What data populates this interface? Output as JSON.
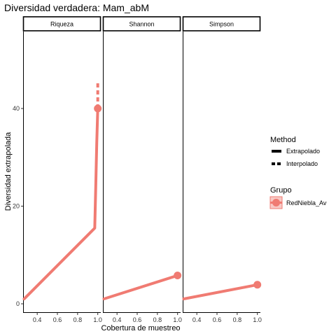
{
  "chart_data": {
    "type": "line",
    "title": "Diversidad verdadera: Mam_abM",
    "xlabel": "Cobertura de muestreo",
    "ylabel": "Diversidad extrapolada",
    "ylim": [
      0,
      56
    ],
    "xlim": [
      0.26,
      1.03
    ],
    "y_ticks": [
      "0",
      "20",
      "40"
    ],
    "y_tick_values": [
      0,
      20,
      40
    ],
    "x_ticks": [
      "0.4",
      "0.6",
      "0.8",
      "1.0"
    ],
    "x_tick_values": [
      0.4,
      0.6,
      0.8,
      1.0
    ],
    "series_color": "#F07B72",
    "panels": [
      {
        "label": "Riqueza",
        "interpolado": [
          [
            0.27,
            1.0
          ],
          [
            0.97,
            15.5
          ],
          [
            0.98,
            24.0
          ],
          [
            0.99,
            33.0
          ],
          [
            1.0,
            40.0
          ]
        ],
        "extrapolado": [
          [
            1.0,
            40.0
          ],
          [
            1.0,
            45.5
          ]
        ],
        "observed": [
          1.0,
          40.0
        ]
      },
      {
        "label": "Shannon",
        "interpolado": [
          [
            0.27,
            1.0
          ],
          [
            1.0,
            5.8
          ]
        ],
        "extrapolado": [],
        "observed": [
          1.0,
          5.8
        ]
      },
      {
        "label": "Simpson",
        "interpolado": [
          [
            0.27,
            1.0
          ],
          [
            1.0,
            3.9
          ]
        ],
        "extrapolado": [],
        "observed": [
          1.0,
          3.9
        ]
      }
    ],
    "legend": {
      "placement": "right",
      "method_title": "Method",
      "method_items": [
        "Extrapolado",
        "Interpolado"
      ],
      "group_title": "Grupo",
      "group_items": [
        "RedNiebla_Av"
      ]
    }
  }
}
